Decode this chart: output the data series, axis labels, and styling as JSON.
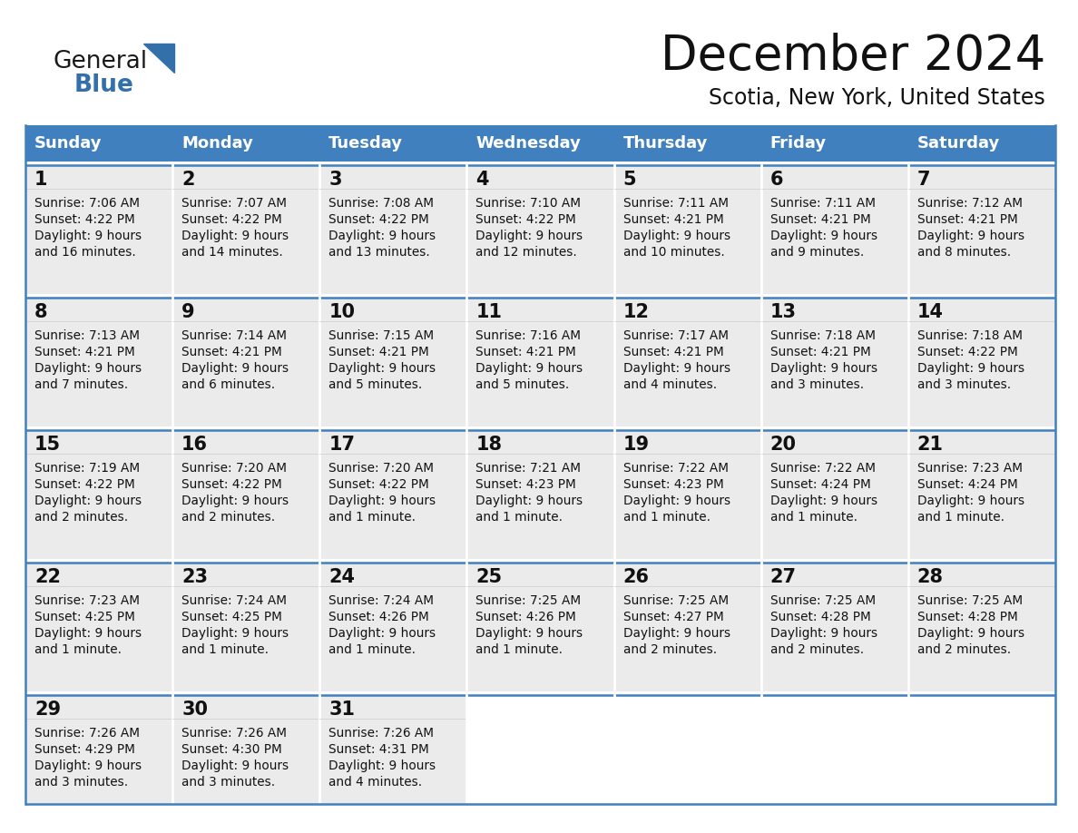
{
  "title": "December 2024",
  "subtitle": "Scotia, New York, United States",
  "header_color": "#4080BF",
  "header_text_color": "#FFFFFF",
  "cell_bg": "#EBEBEB",
  "empty_bg": "#FFFFFF",
  "border_color": "#4080BF",
  "text_color": "#111111",
  "days_of_week": [
    "Sunday",
    "Monday",
    "Tuesday",
    "Wednesday",
    "Thursday",
    "Friday",
    "Saturday"
  ],
  "calendar_data": [
    [
      {
        "day": "1",
        "sunrise": "7:06 AM",
        "sunset": "4:22 PM",
        "daylight": "9 hours",
        "daylight2": "and 16 minutes."
      },
      {
        "day": "2",
        "sunrise": "7:07 AM",
        "sunset": "4:22 PM",
        "daylight": "9 hours",
        "daylight2": "and 14 minutes."
      },
      {
        "day": "3",
        "sunrise": "7:08 AM",
        "sunset": "4:22 PM",
        "daylight": "9 hours",
        "daylight2": "and 13 minutes."
      },
      {
        "day": "4",
        "sunrise": "7:10 AM",
        "sunset": "4:22 PM",
        "daylight": "9 hours",
        "daylight2": "and 12 minutes."
      },
      {
        "day": "5",
        "sunrise": "7:11 AM",
        "sunset": "4:21 PM",
        "daylight": "9 hours",
        "daylight2": "and 10 minutes."
      },
      {
        "day": "6",
        "sunrise": "7:11 AM",
        "sunset": "4:21 PM",
        "daylight": "9 hours",
        "daylight2": "and 9 minutes."
      },
      {
        "day": "7",
        "sunrise": "7:12 AM",
        "sunset": "4:21 PM",
        "daylight": "9 hours",
        "daylight2": "and 8 minutes."
      }
    ],
    [
      {
        "day": "8",
        "sunrise": "7:13 AM",
        "sunset": "4:21 PM",
        "daylight": "9 hours",
        "daylight2": "and 7 minutes."
      },
      {
        "day": "9",
        "sunrise": "7:14 AM",
        "sunset": "4:21 PM",
        "daylight": "9 hours",
        "daylight2": "and 6 minutes."
      },
      {
        "day": "10",
        "sunrise": "7:15 AM",
        "sunset": "4:21 PM",
        "daylight": "9 hours",
        "daylight2": "and 5 minutes."
      },
      {
        "day": "11",
        "sunrise": "7:16 AM",
        "sunset": "4:21 PM",
        "daylight": "9 hours",
        "daylight2": "and 5 minutes."
      },
      {
        "day": "12",
        "sunrise": "7:17 AM",
        "sunset": "4:21 PM",
        "daylight": "9 hours",
        "daylight2": "and 4 minutes."
      },
      {
        "day": "13",
        "sunrise": "7:18 AM",
        "sunset": "4:21 PM",
        "daylight": "9 hours",
        "daylight2": "and 3 minutes."
      },
      {
        "day": "14",
        "sunrise": "7:18 AM",
        "sunset": "4:22 PM",
        "daylight": "9 hours",
        "daylight2": "and 3 minutes."
      }
    ],
    [
      {
        "day": "15",
        "sunrise": "7:19 AM",
        "sunset": "4:22 PM",
        "daylight": "9 hours",
        "daylight2": "and 2 minutes."
      },
      {
        "day": "16",
        "sunrise": "7:20 AM",
        "sunset": "4:22 PM",
        "daylight": "9 hours",
        "daylight2": "and 2 minutes."
      },
      {
        "day": "17",
        "sunrise": "7:20 AM",
        "sunset": "4:22 PM",
        "daylight": "9 hours",
        "daylight2": "and 1 minute."
      },
      {
        "day": "18",
        "sunrise": "7:21 AM",
        "sunset": "4:23 PM",
        "daylight": "9 hours",
        "daylight2": "and 1 minute."
      },
      {
        "day": "19",
        "sunrise": "7:22 AM",
        "sunset": "4:23 PM",
        "daylight": "9 hours",
        "daylight2": "and 1 minute."
      },
      {
        "day": "20",
        "sunrise": "7:22 AM",
        "sunset": "4:24 PM",
        "daylight": "9 hours",
        "daylight2": "and 1 minute."
      },
      {
        "day": "21",
        "sunrise": "7:23 AM",
        "sunset": "4:24 PM",
        "daylight": "9 hours",
        "daylight2": "and 1 minute."
      }
    ],
    [
      {
        "day": "22",
        "sunrise": "7:23 AM",
        "sunset": "4:25 PM",
        "daylight": "9 hours",
        "daylight2": "and 1 minute."
      },
      {
        "day": "23",
        "sunrise": "7:24 AM",
        "sunset": "4:25 PM",
        "daylight": "9 hours",
        "daylight2": "and 1 minute."
      },
      {
        "day": "24",
        "sunrise": "7:24 AM",
        "sunset": "4:26 PM",
        "daylight": "9 hours",
        "daylight2": "and 1 minute."
      },
      {
        "day": "25",
        "sunrise": "7:25 AM",
        "sunset": "4:26 PM",
        "daylight": "9 hours",
        "daylight2": "and 1 minute."
      },
      {
        "day": "26",
        "sunrise": "7:25 AM",
        "sunset": "4:27 PM",
        "daylight": "9 hours",
        "daylight2": "and 2 minutes."
      },
      {
        "day": "27",
        "sunrise": "7:25 AM",
        "sunset": "4:28 PM",
        "daylight": "9 hours",
        "daylight2": "and 2 minutes."
      },
      {
        "day": "28",
        "sunrise": "7:25 AM",
        "sunset": "4:28 PM",
        "daylight": "9 hours",
        "daylight2": "and 2 minutes."
      }
    ],
    [
      {
        "day": "29",
        "sunrise": "7:26 AM",
        "sunset": "4:29 PM",
        "daylight": "9 hours",
        "daylight2": "and 3 minutes."
      },
      {
        "day": "30",
        "sunrise": "7:26 AM",
        "sunset": "4:30 PM",
        "daylight": "9 hours",
        "daylight2": "and 3 minutes."
      },
      {
        "day": "31",
        "sunrise": "7:26 AM",
        "sunset": "4:31 PM",
        "daylight": "9 hours",
        "daylight2": "and 4 minutes."
      },
      null,
      null,
      null,
      null
    ]
  ],
  "logo_color_general": "#1a1a1a",
  "logo_color_blue": "#3370AA",
  "logo_text_general": "General",
  "logo_text_blue": "Blue"
}
